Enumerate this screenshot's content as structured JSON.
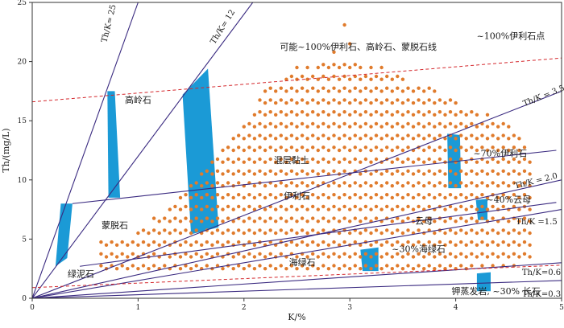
{
  "chart_data": {
    "type": "scatter",
    "xlabel": "K/%",
    "ylabel": "Th/(mg/L)",
    "xlim": [
      0,
      5
    ],
    "ylim": [
      0,
      25
    ],
    "x_ticks": [
      0,
      1,
      2,
      3,
      4,
      5
    ],
    "y_ticks": [
      0,
      5,
      10,
      15,
      20,
      25
    ],
    "grid": false,
    "colors": {
      "point": "#e07b2c",
      "ratio_line": "#3a2a80",
      "dashed_line": "#d4272c",
      "band": "#1b9ad6",
      "axis": "#333333"
    },
    "ratio_lines": [
      {
        "label": "Th/K= 25",
        "slope": 25
      },
      {
        "label": "Th/K= 12",
        "slope": 12
      },
      {
        "label": "Th/K = 3.5",
        "slope": 3.5
      },
      {
        "label": "Th/K = 2.0",
        "slope": 2.0
      },
      {
        "label": "Th/K =1.5",
        "slope": 1.5
      },
      {
        "label": "Th/K=0.6",
        "slope": 0.6
      },
      {
        "label": "Th/K=0.3",
        "slope": 0.3
      }
    ],
    "field_boundaries": [
      {
        "from": [
          0.38,
          8.0
        ],
        "to": [
          4.95,
          12.5
        ]
      },
      {
        "from": [
          0.45,
          2.7
        ],
        "to": [
          4.95,
          8.1
        ]
      }
    ],
    "dashed_lines": [
      {
        "from": [
          0,
          16.6
        ],
        "to": [
          5,
          20.3
        ]
      },
      {
        "from": [
          0,
          0.9
        ],
        "to": [
          5,
          2.8
        ]
      }
    ],
    "bands": [
      {
        "name": "band-1",
        "poly": [
          [
            0.22,
            2.7
          ],
          [
            0.33,
            3.4
          ],
          [
            0.38,
            8.0
          ],
          [
            0.27,
            8.0
          ]
        ]
      },
      {
        "name": "band-2",
        "poly": [
          [
            0.71,
            17.5
          ],
          [
            0.78,
            17.5
          ],
          [
            0.83,
            8.5
          ],
          [
            0.72,
            8.5
          ]
        ]
      },
      {
        "name": "band-3",
        "poly": [
          [
            1.42,
            17.2
          ],
          [
            1.66,
            19.4
          ],
          [
            1.76,
            6.0
          ],
          [
            1.5,
            5.4
          ]
        ]
      },
      {
        "name": "band-4",
        "poly": [
          [
            3.92,
            13.9
          ],
          [
            4.04,
            13.8
          ],
          [
            4.05,
            9.3
          ],
          [
            3.93,
            9.3
          ]
        ]
      },
      {
        "name": "band-5",
        "poly": [
          [
            4.19,
            8.3
          ],
          [
            4.3,
            8.4
          ],
          [
            4.3,
            6.6
          ],
          [
            4.21,
            6.6
          ]
        ]
      },
      {
        "name": "band-6",
        "poly": [
          [
            3.1,
            4.1
          ],
          [
            3.27,
            4.3
          ],
          [
            3.27,
            2.3
          ],
          [
            3.12,
            2.3
          ]
        ]
      },
      {
        "name": "band-7",
        "poly": [
          [
            4.2,
            2.1
          ],
          [
            4.33,
            2.2
          ],
          [
            4.33,
            0.6
          ],
          [
            4.2,
            0.6
          ]
        ]
      }
    ],
    "point_grid": {
      "x_start": 0.65,
      "x_end": 4.7,
      "x_step": 0.05,
      "y_start": 2.3,
      "y_step": 0.5
    },
    "point_envelope": [
      {
        "x": 0.65,
        "top": 5.0
      },
      {
        "x": 1.0,
        "top": 5.5
      },
      {
        "x": 1.3,
        "top": 8.0
      },
      {
        "x": 1.6,
        "top": 10.5
      },
      {
        "x": 1.9,
        "top": 13.5
      },
      {
        "x": 2.2,
        "top": 17.5
      },
      {
        "x": 2.5,
        "top": 19.5
      },
      {
        "x": 2.95,
        "top": 20.0
      },
      {
        "x": 3.3,
        "top": 19.5
      },
      {
        "x": 3.7,
        "top": 18.0
      },
      {
        "x": 4.0,
        "top": 16.5
      },
      {
        "x": 4.3,
        "top": 15.5
      },
      {
        "x": 4.5,
        "top": 15.0
      },
      {
        "x": 4.7,
        "top": 12.0
      }
    ],
    "point_outliers": [
      [
        2.95,
        23.1
      ],
      [
        3.0,
        21.5
      ],
      [
        2.85,
        20.8
      ]
    ],
    "annotations": [
      {
        "text": "可能~100%伊利石、高岭石、蒙脱石线",
        "x": 3.08,
        "y": 21.0
      },
      {
        "text": "~100%伊利石点",
        "x": 4.52,
        "y": 21.9
      },
      {
        "text": "高岭石",
        "x": 1.0,
        "y": 16.5
      },
      {
        "text": "~70%伊利石",
        "x": 4.42,
        "y": 12.0
      },
      {
        "text": "混层黏土",
        "x": 2.45,
        "y": 11.4
      },
      {
        "text": "~40%云母",
        "x": 4.5,
        "y": 8.1
      },
      {
        "text": "蒙脱石",
        "x": 0.78,
        "y": 5.9
      },
      {
        "text": "伊利石",
        "x": 2.5,
        "y": 8.4
      },
      {
        "text": "云母",
        "x": 3.7,
        "y": 6.3
      },
      {
        "text": "绿泥石",
        "x": 0.46,
        "y": 1.8
      },
      {
        "text": "海绿石",
        "x": 2.55,
        "y": 2.8
      },
      {
        "text": "~30%海绿石",
        "x": 3.65,
        "y": 3.9
      },
      {
        "text": "钾蒸发岩, ~30% 长石",
        "x": 4.38,
        "y": 0.35
      }
    ]
  }
}
